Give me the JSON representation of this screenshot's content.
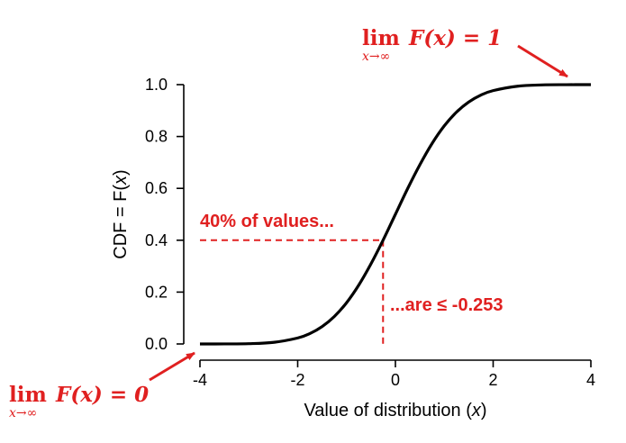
{
  "chart_data": {
    "type": "line",
    "title": "",
    "xlabel": "Value of distribution",
    "xlabel_var": "x",
    "ylabel": "CDF = F",
    "ylabel_var": "x",
    "xlim": [
      -4,
      4
    ],
    "ylim": [
      0.0,
      1.0
    ],
    "x_ticks": [
      -4,
      -2,
      0,
      2,
      4
    ],
    "x_tick_labels": [
      "-4",
      "-2",
      "0",
      "2",
      "4"
    ],
    "y_ticks": [
      0.0,
      0.2,
      0.4,
      0.6,
      0.8,
      1.0
    ],
    "y_tick_labels": [
      "0.0",
      "0.2",
      "0.4",
      "0.6",
      "0.8",
      "1.0"
    ],
    "grid": false,
    "series": [
      {
        "color": "#000000",
        "x": [
          -4,
          -3.5,
          -3,
          -2.5,
          -2,
          -1.75,
          -1.5,
          -1.25,
          -1,
          -0.75,
          -0.5,
          -0.253,
          0,
          0.25,
          0.5,
          0.75,
          1,
          1.25,
          1.5,
          1.75,
          2,
          2.5,
          3,
          3.5,
          4
        ],
        "y": [
          0.0,
          0.0002,
          0.001,
          0.006,
          0.023,
          0.04,
          0.067,
          0.106,
          0.159,
          0.227,
          0.309,
          0.4,
          0.5,
          0.599,
          0.691,
          0.773,
          0.841,
          0.894,
          0.933,
          0.96,
          0.977,
          0.994,
          0.999,
          0.9998,
          1.0
        ]
      }
    ],
    "reference_point": {
      "x": -0.253,
      "y": 0.4,
      "color": "#e02020"
    },
    "annotations": {
      "color": "#e02020",
      "upper_limit": {
        "lim": "lim",
        "sub": "x→∞",
        "expr": "F(x) = 1"
      },
      "lower_limit": {
        "lim": "lim",
        "sub": "x→∞",
        "expr": "F(x) = 0"
      },
      "text_pct": "40% of values...",
      "text_le": "...are ≤ -0.253"
    }
  }
}
